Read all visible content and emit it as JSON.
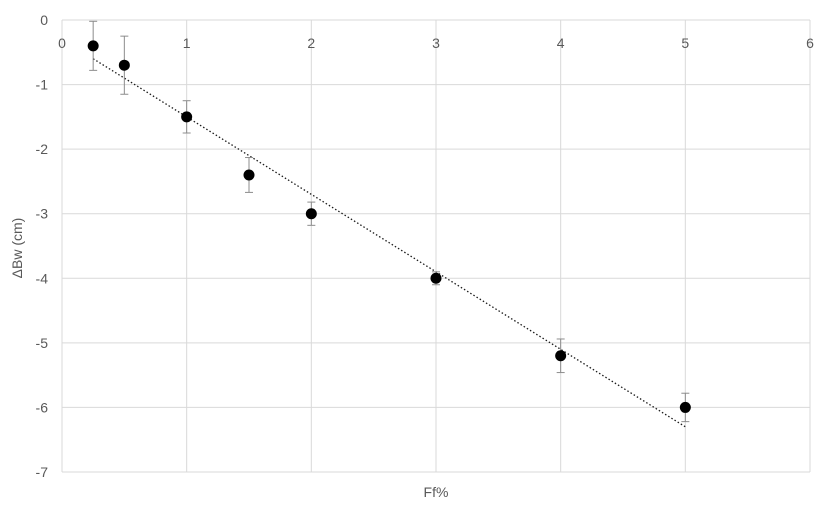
{
  "chart_data": {
    "type": "scatter",
    "xlabel": "Ff%",
    "ylabel": "ΔBw (cm)",
    "xlim": [
      0,
      6
    ],
    "ylim": [
      -7,
      0
    ],
    "x_ticks": [
      0,
      1,
      2,
      3,
      4,
      5,
      6
    ],
    "y_ticks": [
      0,
      -1,
      -2,
      -3,
      -4,
      -5,
      -6,
      -7
    ],
    "grid": true,
    "legend": "none",
    "series": [
      {
        "points": [
          {
            "x": 0.25,
            "y": -0.4,
            "err": 0.38
          },
          {
            "x": 0.5,
            "y": -0.7,
            "err": 0.45
          },
          {
            "x": 1.0,
            "y": -1.5,
            "err": 0.25
          },
          {
            "x": 1.5,
            "y": -2.4,
            "err": 0.27
          },
          {
            "x": 2.0,
            "y": -3.0,
            "err": 0.18
          },
          {
            "x": 3.0,
            "y": -4.0,
            "err": 0.1
          },
          {
            "x": 4.0,
            "y": -5.2,
            "err": 0.26
          },
          {
            "x": 5.0,
            "y": -6.0,
            "err": 0.22
          }
        ]
      }
    ],
    "trendline": {
      "type": "linear",
      "x": [
        0.25,
        5.0
      ],
      "y": [
        -0.6,
        -6.3
      ]
    },
    "colors": {
      "points": "#000000",
      "grid": "#d9d9d9",
      "error_bars": "#8c8c8c",
      "text": "#595959"
    }
  }
}
